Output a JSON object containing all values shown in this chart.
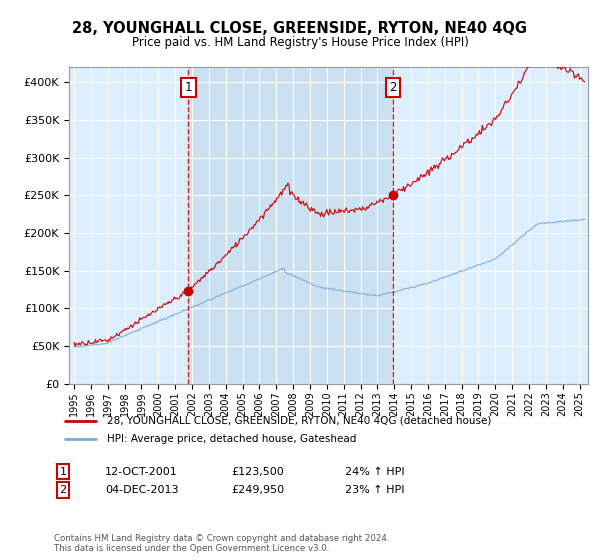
{
  "title": "28, YOUNGHALL CLOSE, GREENSIDE, RYTON, NE40 4QG",
  "subtitle": "Price paid vs. HM Land Registry's House Price Index (HPI)",
  "legend_line1": "28, YOUNGHALL CLOSE, GREENSIDE, RYTON, NE40 4QG (detached house)",
  "legend_line2": "HPI: Average price, detached house, Gateshead",
  "annotation1_date": "12-OCT-2001",
  "annotation1_price": "£123,500",
  "annotation1_hpi": "24% ↑ HPI",
  "annotation2_date": "04-DEC-2013",
  "annotation2_price": "£249,950",
  "annotation2_hpi": "23% ↑ HPI",
  "footer": "Contains HM Land Registry data © Crown copyright and database right 2024.\nThis data is licensed under the Open Government Licence v3.0.",
  "vline1_year": 2001.79,
  "vline2_year": 2013.92,
  "sale1_year": 2001.79,
  "sale1_price": 123500,
  "sale2_year": 2013.92,
  "sale2_price": 249950,
  "red_color": "#cc0000",
  "blue_color": "#7aaddb",
  "shade_color": "#c8dff0",
  "bg_color": "#ddeeff",
  "ylim_min": 0,
  "ylim_max": 420000,
  "xlim_min": 1994.7,
  "xlim_max": 2025.5
}
